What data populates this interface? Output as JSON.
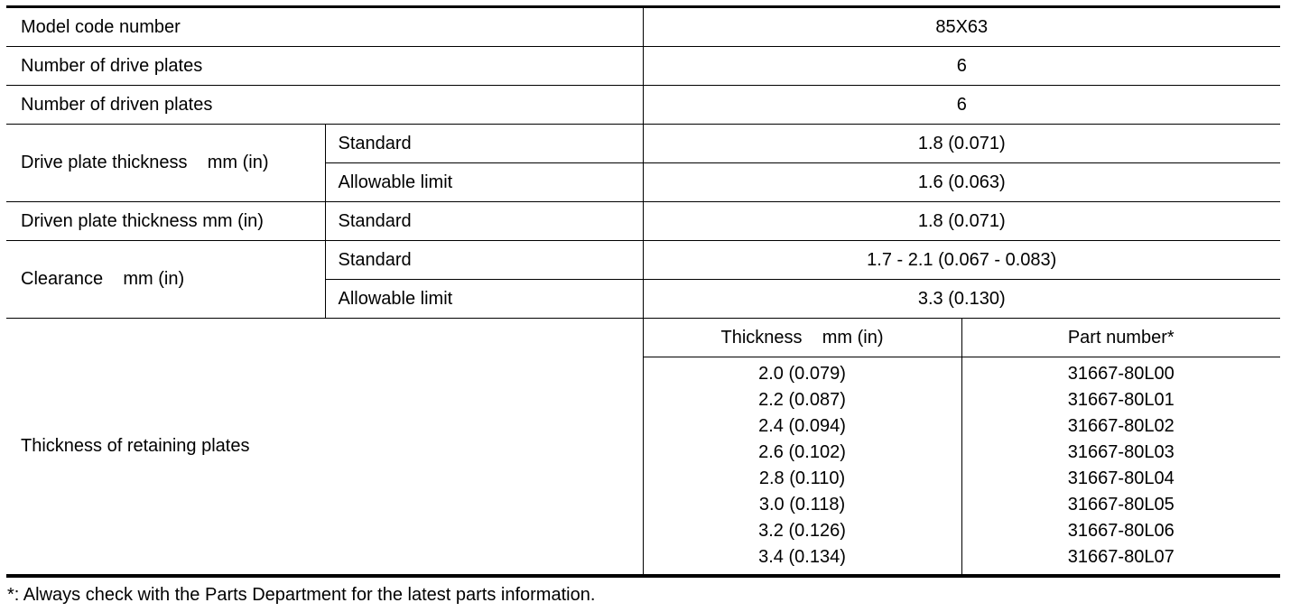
{
  "rows": {
    "model_code": {
      "label": "Model code number",
      "value": "85X63"
    },
    "drive_plates": {
      "label": "Number of drive plates",
      "value": "6"
    },
    "driven_plates": {
      "label": "Number of driven plates",
      "value": "6"
    },
    "drive_thickness": {
      "label": "Drive plate thickness    mm (in)",
      "standard_label": "Standard",
      "standard": "1.8 (0.071)",
      "limit_label": "Allowable limit",
      "limit": "1.6 (0.063)"
    },
    "driven_thickness": {
      "label": "Driven plate thickness mm (in)",
      "standard_label": "Standard",
      "standard": "1.8 (0.071)"
    },
    "clearance": {
      "label": "Clearance    mm (in)",
      "standard_label": "Standard",
      "standard": "1.7 - 2.1 (0.067 - 0.083)",
      "limit_label": "Allowable limit",
      "limit": "3.3 (0.130)"
    },
    "retaining": {
      "label": "Thickness of retaining plates",
      "col_thickness": "Thickness    mm (in)",
      "col_part": "Part number*",
      "thickness": [
        "2.0 (0.079)",
        "2.2 (0.087)",
        "2.4 (0.094)",
        "2.6 (0.102)",
        "2.8 (0.110)",
        "3.0 (0.118)",
        "3.2 (0.126)",
        "3.4 (0.134)"
      ],
      "parts": [
        "31667-80L00",
        "31667-80L01",
        "31667-80L02",
        "31667-80L03",
        "31667-80L04",
        "31667-80L05",
        "31667-80L06",
        "31667-80L07"
      ]
    }
  },
  "footnote": "*: Always check with the Parts Department for the latest parts information."
}
